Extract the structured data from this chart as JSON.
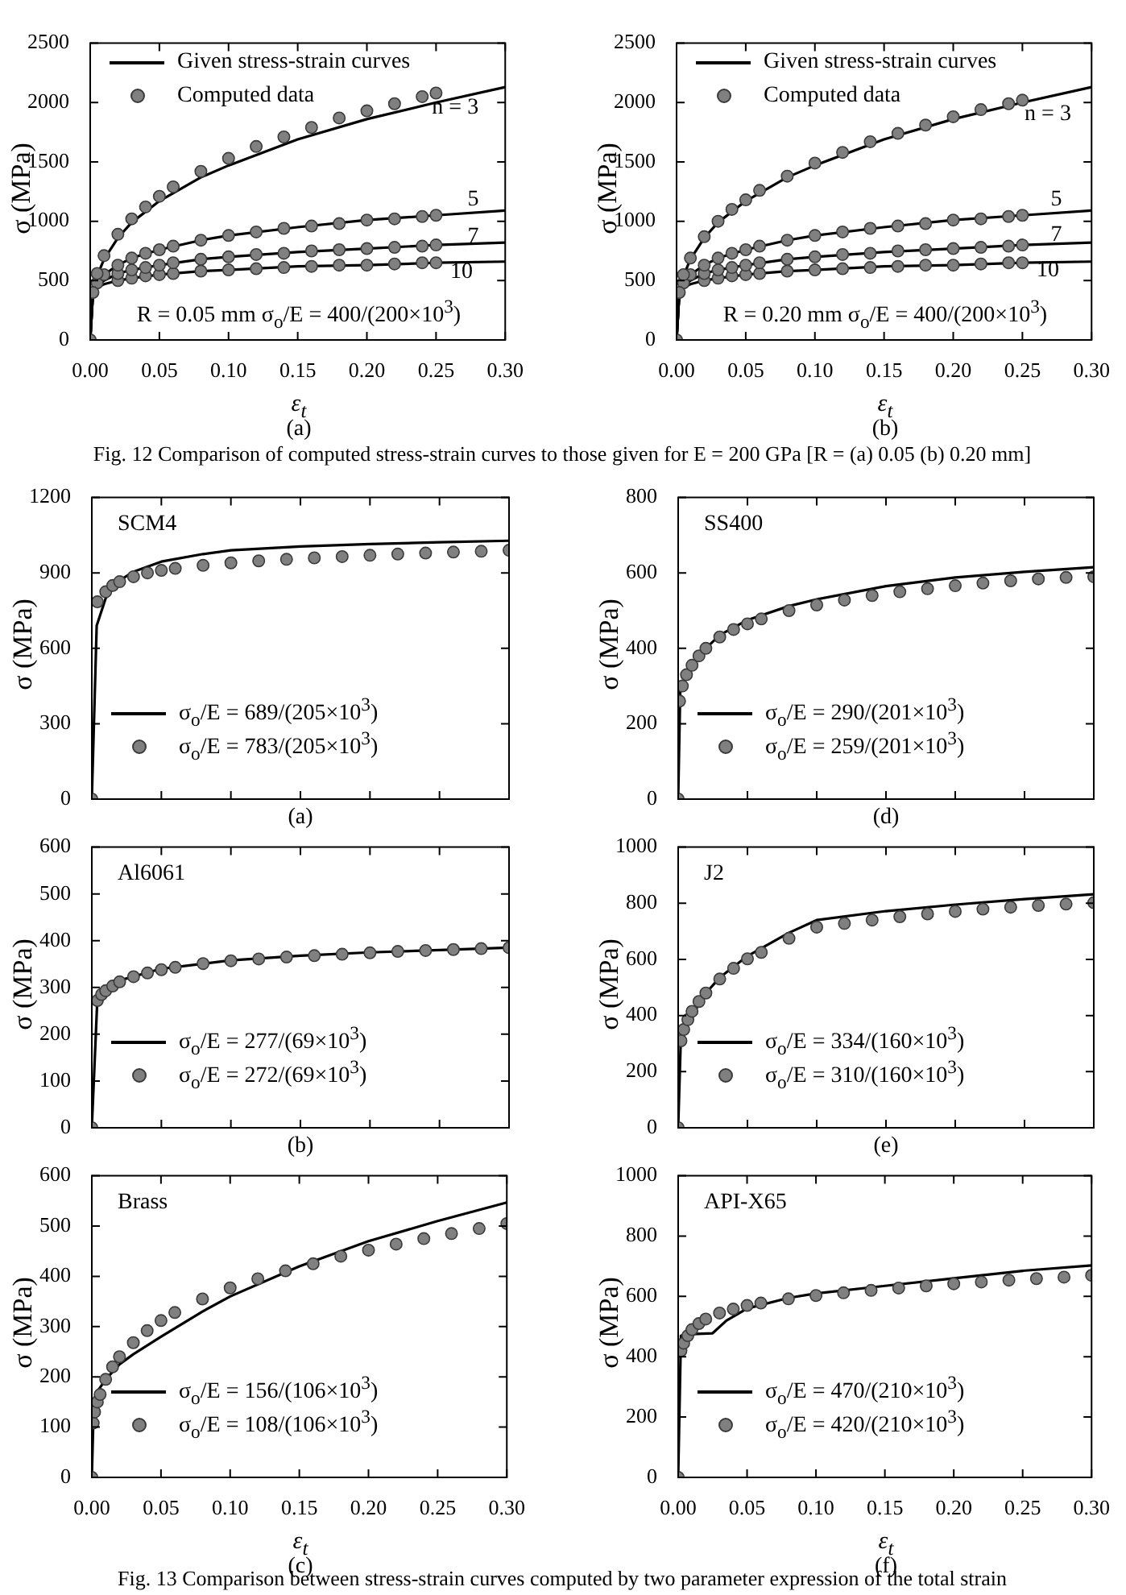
{
  "chart_data": [
    {
      "type": "line",
      "xlabel": "ε$_{t}$",
      "ylabel": "σ (MPa)",
      "xlim": [
        0,
        0.3
      ],
      "ylim": [
        0,
        2500
      ],
      "xticks": [
        {
          "value": 0,
          "label": "0.00"
        },
        {
          "value": 0.05,
          "label": "0.05"
        },
        {
          "value": 0.1,
          "label": "0.10"
        },
        {
          "value": 0.15,
          "label": "0.15"
        },
        {
          "value": 0.2,
          "label": "0.20"
        },
        {
          "value": 0.25,
          "label": "0.25"
        },
        {
          "value": 0.3,
          "label": "0.30"
        }
      ],
      "yticks": [
        0,
        500,
        1000,
        1500,
        2000,
        2500
      ],
      "legend": "top left",
      "annotations": [
        "n = 3",
        "5",
        "7",
        "10",
        "R = 0.05 mm   σ$_{o}$/E = 400/(200×10$^{3}$)",
        "(a)",
        "Fig. 12 Comparison of computed stress-strain curves to those given for E = 200 GPa [R = (a) 0.05 (b) 0.20 mm]"
      ],
      "series": [
        {
          "name": "Given stress-strain curves",
          "type": "line",
          "marker": "none",
          "color": "#000000",
          "x": [
            0,
            0.002,
            0.005,
            0.01,
            0.02,
            0.03,
            0.05,
            0.08,
            0.1,
            0.15,
            0.2,
            0.25,
            0.3
          ],
          "values": [
            0,
            400,
            540,
            680,
            860,
            990,
            1170,
            1370,
            1470,
            1690,
            1860,
            2000,
            2130
          ]
        },
        {
          "type": "line",
          "marker": "none",
          "color": "#000000",
          "x": [
            0,
            0.002,
            0.005,
            0.01,
            0.02,
            0.03,
            0.05,
            0.08,
            0.1,
            0.15,
            0.2,
            0.25,
            0.3
          ],
          "values": [
            0,
            400,
            480,
            550,
            630,
            690,
            760,
            840,
            880,
            950,
            1010,
            1050,
            1090
          ]
        },
        {
          "type": "line",
          "marker": "none",
          "color": "#000000",
          "x": [
            0,
            0.002,
            0.005,
            0.01,
            0.02,
            0.03,
            0.05,
            0.08,
            0.1,
            0.15,
            0.2,
            0.25,
            0.3
          ],
          "values": [
            0,
            400,
            460,
            500,
            560,
            590,
            630,
            680,
            700,
            740,
            770,
            800,
            820
          ]
        },
        {
          "type": "line",
          "marker": "none",
          "color": "#000000",
          "x": [
            0,
            0.002,
            0.005,
            0.01,
            0.02,
            0.03,
            0.05,
            0.08,
            0.1,
            0.15,
            0.2,
            0.25,
            0.3
          ],
          "values": [
            0,
            400,
            440,
            470,
            500,
            520,
            550,
            580,
            590,
            620,
            630,
            650,
            660
          ]
        },
        {
          "name": "Computed data",
          "type": "scatter",
          "marker": "circle",
          "color": "#808080",
          "x": [
            0,
            0.002,
            0.005,
            0.01,
            0.02,
            0.03,
            0.04,
            0.05,
            0.06,
            0.08,
            0.1,
            0.12,
            0.14,
            0.16,
            0.18,
            0.2,
            0.22,
            0.24,
            0.25
          ],
          "values": [
            0,
            400,
            560,
            710,
            890,
            1020,
            1120,
            1210,
            1290,
            1420,
            1530,
            1630,
            1710,
            1790,
            1870,
            1930,
            1990,
            2050,
            2080
          ]
        },
        {
          "type": "scatter",
          "marker": "circle",
          "color": "#808080",
          "x": [
            0.005,
            0.01,
            0.02,
            0.03,
            0.04,
            0.05,
            0.06,
            0.08,
            0.1,
            0.12,
            0.14,
            0.16,
            0.18,
            0.2,
            0.22,
            0.24,
            0.25
          ],
          "values": [
            480,
            550,
            630,
            690,
            730,
            760,
            790,
            840,
            880,
            910,
            940,
            960,
            980,
            1010,
            1020,
            1040,
            1050
          ]
        },
        {
          "type": "scatter",
          "marker": "circle",
          "color": "#808080",
          "x": [
            0.02,
            0.03,
            0.04,
            0.05,
            0.06,
            0.08,
            0.1,
            0.12,
            0.14,
            0.16,
            0.18,
            0.2,
            0.22,
            0.24,
            0.25
          ],
          "values": [
            560,
            590,
            610,
            630,
            650,
            680,
            700,
            720,
            730,
            750,
            760,
            770,
            780,
            790,
            800
          ]
        },
        {
          "type": "scatter",
          "marker": "circle",
          "color": "#808080",
          "x": [
            0.02,
            0.03,
            0.04,
            0.05,
            0.06,
            0.08,
            0.1,
            0.12,
            0.14,
            0.16,
            0.18,
            0.2,
            0.22,
            0.24,
            0.25
          ],
          "values": [
            500,
            520,
            540,
            550,
            560,
            580,
            590,
            600,
            610,
            620,
            630,
            630,
            640,
            650,
            650
          ]
        }
      ]
    },
    {
      "type": "line",
      "xlabel": "ε$_{t}$",
      "ylabel": "σ (MPa)",
      "xlim": [
        0,
        0.3
      ],
      "ylim": [
        0,
        2500
      ],
      "xticks": [
        {
          "value": 0,
          "label": "0.00"
        },
        {
          "value": 0.05,
          "label": "0.05"
        },
        {
          "value": 0.1,
          "label": "0.10"
        },
        {
          "value": 0.15,
          "label": "0.15"
        },
        {
          "value": 0.2,
          "label": "0.20"
        },
        {
          "value": 0.25,
          "label": "0.25"
        },
        {
          "value": 0.3,
          "label": "0.30"
        }
      ],
      "yticks": [
        0,
        500,
        1000,
        1500,
        2000,
        2500
      ],
      "legend": "top left",
      "annotations": [
        "n = 3",
        "5",
        "7",
        "10",
        "R = 0.20 mm   σ$_{o}$/E = 400/(200×10$^{3}$)",
        "(b)"
      ],
      "series": [
        {
          "name": "Given stress-strain curves",
          "type": "line",
          "marker": "none",
          "color": "#000000",
          "x": [
            0,
            0.002,
            0.005,
            0.01,
            0.02,
            0.03,
            0.05,
            0.08,
            0.1,
            0.15,
            0.2,
            0.25,
            0.3
          ],
          "values": [
            0,
            400,
            540,
            680,
            860,
            990,
            1170,
            1370,
            1470,
            1690,
            1860,
            2000,
            2130
          ]
        },
        {
          "type": "line",
          "marker": "none",
          "color": "#000000",
          "x": [
            0,
            0.002,
            0.005,
            0.01,
            0.02,
            0.03,
            0.05,
            0.08,
            0.1,
            0.15,
            0.2,
            0.25,
            0.3
          ],
          "values": [
            0,
            400,
            480,
            550,
            630,
            690,
            760,
            840,
            880,
            950,
            1010,
            1050,
            1090
          ]
        },
        {
          "type": "line",
          "marker": "none",
          "color": "#000000",
          "x": [
            0,
            0.002,
            0.005,
            0.01,
            0.02,
            0.03,
            0.05,
            0.08,
            0.1,
            0.15,
            0.2,
            0.25,
            0.3
          ],
          "values": [
            0,
            400,
            460,
            500,
            560,
            590,
            630,
            680,
            700,
            740,
            770,
            800,
            820
          ]
        },
        {
          "type": "line",
          "marker": "none",
          "color": "#000000",
          "x": [
            0,
            0.002,
            0.005,
            0.01,
            0.02,
            0.03,
            0.05,
            0.08,
            0.1,
            0.15,
            0.2,
            0.25,
            0.3
          ],
          "values": [
            0,
            400,
            440,
            470,
            500,
            520,
            550,
            580,
            590,
            620,
            630,
            650,
            660
          ]
        },
        {
          "name": "Computed data",
          "type": "scatter",
          "marker": "circle",
          "color": "#808080",
          "x": [
            0,
            0.002,
            0.005,
            0.01,
            0.02,
            0.03,
            0.04,
            0.05,
            0.06,
            0.08,
            0.1,
            0.12,
            0.14,
            0.16,
            0.18,
            0.2,
            0.22,
            0.24,
            0.25
          ],
          "values": [
            0,
            400,
            550,
            690,
            870,
            1000,
            1100,
            1180,
            1260,
            1380,
            1490,
            1580,
            1670,
            1740,
            1810,
            1880,
            1940,
            1990,
            2020
          ]
        },
        {
          "type": "scatter",
          "marker": "circle",
          "color": "#808080",
          "x": [
            0.005,
            0.01,
            0.02,
            0.03,
            0.04,
            0.05,
            0.06,
            0.08,
            0.1,
            0.12,
            0.14,
            0.16,
            0.18,
            0.2,
            0.22,
            0.24,
            0.25
          ],
          "values": [
            480,
            550,
            630,
            690,
            730,
            760,
            790,
            840,
            880,
            910,
            940,
            960,
            980,
            1010,
            1020,
            1040,
            1050
          ]
        },
        {
          "type": "scatter",
          "marker": "circle",
          "color": "#808080",
          "x": [
            0.02,
            0.03,
            0.04,
            0.05,
            0.06,
            0.08,
            0.1,
            0.12,
            0.14,
            0.16,
            0.18,
            0.2,
            0.22,
            0.24,
            0.25
          ],
          "values": [
            560,
            590,
            610,
            630,
            650,
            680,
            700,
            720,
            730,
            750,
            760,
            770,
            780,
            790,
            800
          ]
        },
        {
          "type": "scatter",
          "marker": "circle",
          "color": "#808080",
          "x": [
            0.02,
            0.03,
            0.04,
            0.05,
            0.06,
            0.08,
            0.1,
            0.12,
            0.14,
            0.16,
            0.18,
            0.2,
            0.22,
            0.24,
            0.25
          ],
          "values": [
            500,
            520,
            540,
            550,
            560,
            580,
            590,
            600,
            610,
            620,
            630,
            630,
            640,
            650,
            650
          ]
        }
      ]
    },
    {
      "type": "line",
      "ylabel": "σ (MPa)",
      "xlim": [
        0,
        0.3
      ],
      "ylim": [
        0,
        1200
      ],
      "tick_labels": "y",
      "xticks": [
        0,
        0.05,
        0.1,
        0.15,
        0.2,
        0.25,
        0.3
      ],
      "yticks": [
        0,
        300,
        600,
        900,
        1200
      ],
      "legend": "bottom left",
      "annotations": [
        "SCM4",
        "(a)"
      ],
      "series": [
        {
          "name": "σ$_{o}$/E = 689/(205×10$^{3}$)",
          "type": "line",
          "marker": "none",
          "color": "#000000",
          "x": [
            0,
            0.0035,
            0.01,
            0.02,
            0.03,
            0.05,
            0.08,
            0.1,
            0.15,
            0.2,
            0.25,
            0.3
          ],
          "values": [
            0,
            690,
            800,
            870,
            905,
            945,
            975,
            990,
            1005,
            1015,
            1022,
            1028
          ]
        },
        {
          "name": "σ$_{o}$/E = 783/(205×10$^{3}$)",
          "type": "scatter",
          "marker": "circle",
          "color": "#808080",
          "x": [
            0,
            0.004,
            0.01,
            0.015,
            0.02,
            0.03,
            0.04,
            0.05,
            0.06,
            0.08,
            0.1,
            0.12,
            0.14,
            0.16,
            0.18,
            0.2,
            0.22,
            0.24,
            0.26,
            0.28,
            0.3
          ],
          "values": [
            0,
            785,
            825,
            850,
            865,
            885,
            900,
            910,
            918,
            930,
            940,
            948,
            954,
            960,
            965,
            970,
            975,
            979,
            983,
            986,
            990
          ]
        }
      ]
    },
    {
      "type": "line",
      "ylabel": "σ (MPa)",
      "xlim": [
        0,
        0.3
      ],
      "ylim": [
        0,
        800
      ],
      "tick_labels": "y",
      "xticks": [
        0,
        0.05,
        0.1,
        0.15,
        0.2,
        0.25,
        0.3
      ],
      "yticks": [
        0,
        200,
        400,
        600,
        800
      ],
      "legend": "bottom left",
      "annotations": [
        "SS400",
        "(d)"
      ],
      "series": [
        {
          "name": "σ$_{o}$/E = 290/(201×10$^{3}$)",
          "type": "line",
          "marker": "none",
          "color": "#000000",
          "x": [
            0,
            0.0015,
            0.005,
            0.01,
            0.02,
            0.03,
            0.05,
            0.08,
            0.1,
            0.15,
            0.2,
            0.25,
            0.3
          ],
          "values": [
            0,
            290,
            320,
            350,
            400,
            435,
            475,
            512,
            530,
            565,
            588,
            603,
            615
          ]
        },
        {
          "name": "σ$_{o}$/E = 259/(201×10$^{3}$)",
          "type": "scatter",
          "marker": "circle",
          "color": "#808080",
          "x": [
            0,
            0.001,
            0.003,
            0.006,
            0.01,
            0.015,
            0.02,
            0.03,
            0.04,
            0.05,
            0.06,
            0.08,
            0.1,
            0.12,
            0.14,
            0.16,
            0.18,
            0.2,
            0.22,
            0.24,
            0.26,
            0.28,
            0.3
          ],
          "values": [
            0,
            260,
            300,
            330,
            355,
            380,
            400,
            430,
            450,
            465,
            478,
            500,
            515,
            528,
            540,
            550,
            558,
            566,
            573,
            579,
            584,
            588,
            590
          ]
        }
      ]
    },
    {
      "type": "line",
      "ylabel": "σ (MPa)",
      "xlim": [
        0,
        0.3
      ],
      "ylim": [
        0,
        600
      ],
      "tick_labels": "y",
      "xticks": [
        0,
        0.05,
        0.1,
        0.15,
        0.2,
        0.25,
        0.3
      ],
      "yticks": [
        0,
        100,
        200,
        300,
        400,
        500,
        600
      ],
      "legend": "bottom left",
      "annotations": [
        "Al6061",
        "(b)"
      ],
      "series": [
        {
          "name": "σ$_{o}$/E = 277/(69×10$^{3}$)",
          "type": "line",
          "marker": "none",
          "color": "#000000",
          "x": [
            0,
            0.004,
            0.01,
            0.02,
            0.05,
            0.1,
            0.15,
            0.2,
            0.25,
            0.3
          ],
          "values": [
            0,
            277,
            295,
            315,
            340,
            358,
            368,
            375,
            380,
            385
          ]
        },
        {
          "name": "σ$_{o}$/E = 272/(69×10$^{3}$)",
          "type": "scatter",
          "marker": "circle",
          "color": "#808080",
          "x": [
            0,
            0.004,
            0.007,
            0.01,
            0.015,
            0.02,
            0.03,
            0.04,
            0.05,
            0.06,
            0.08,
            0.1,
            0.12,
            0.14,
            0.16,
            0.18,
            0.2,
            0.22,
            0.24,
            0.26,
            0.28,
            0.3
          ],
          "values": [
            0,
            272,
            285,
            293,
            303,
            312,
            323,
            331,
            338,
            343,
            351,
            357,
            361,
            365,
            368,
            371,
            374,
            377,
            379,
            381,
            383,
            385
          ]
        }
      ]
    },
    {
      "type": "line",
      "ylabel": "σ (MPa)",
      "xlim": [
        0,
        0.3
      ],
      "ylim": [
        0,
        1000
      ],
      "tick_labels": "y",
      "xticks": [
        0,
        0.05,
        0.1,
        0.15,
        0.2,
        0.25,
        0.3
      ],
      "yticks": [
        0,
        200,
        400,
        600,
        800,
        1000
      ],
      "legend": "bottom left",
      "annotations": [
        "J2",
        "(e)"
      ],
      "series": [
        {
          "name": "σ$_{o}$/E = 334/(160×10$^{3}$)",
          "type": "line",
          "marker": "none",
          "color": "#000000",
          "x": [
            0,
            0.002,
            0.005,
            0.01,
            0.02,
            0.03,
            0.05,
            0.08,
            0.1,
            0.15,
            0.2,
            0.25,
            0.3
          ],
          "values": [
            0,
            334,
            350,
            400,
            480,
            535,
            612,
            695,
            740,
            772,
            795,
            815,
            832
          ]
        },
        {
          "name": "σ$_{o}$/E = 310/(160×10$^{3}$)",
          "type": "scatter",
          "marker": "circle",
          "color": "#808080",
          "x": [
            0,
            0.002,
            0.004,
            0.007,
            0.01,
            0.015,
            0.02,
            0.03,
            0.04,
            0.05,
            0.06,
            0.08,
            0.1,
            0.12,
            0.14,
            0.16,
            0.18,
            0.2,
            0.22,
            0.24,
            0.26,
            0.28,
            0.3
          ],
          "values": [
            0,
            310,
            350,
            385,
            415,
            450,
            480,
            530,
            568,
            602,
            625,
            675,
            715,
            728,
            740,
            752,
            762,
            771,
            779,
            786,
            792,
            797,
            802
          ]
        }
      ]
    },
    {
      "type": "line",
      "xlabel": "ε$_{t}$",
      "ylabel": "σ (MPa)",
      "xlim": [
        0,
        0.3
      ],
      "ylim": [
        0,
        600
      ],
      "xticks": [
        {
          "value": 0,
          "label": "0.00"
        },
        {
          "value": 0.05,
          "label": "0.05"
        },
        {
          "value": 0.1,
          "label": "0.10"
        },
        {
          "value": 0.15,
          "label": "0.15"
        },
        {
          "value": 0.2,
          "label": "0.20"
        },
        {
          "value": 0.25,
          "label": "0.25"
        },
        {
          "value": 0.3,
          "label": "0.30"
        }
      ],
      "yticks": [
        0,
        100,
        200,
        300,
        400,
        500,
        600
      ],
      "legend": "bottom left",
      "annotations": [
        "Brass",
        "(c)",
        "Fig. 13 Comparison between stress-strain curves computed by two parameter expression of the total strain"
      ],
      "series": [
        {
          "name": "σ$_{o}$/E = 156/(106×10$^{3}$)",
          "type": "line",
          "marker": "none",
          "color": "#000000",
          "x": [
            0,
            0.0015,
            0.005,
            0.01,
            0.02,
            0.03,
            0.05,
            0.08,
            0.1,
            0.15,
            0.2,
            0.25,
            0.3
          ],
          "values": [
            0,
            156,
            175,
            195,
            225,
            245,
            280,
            330,
            360,
            420,
            470,
            510,
            547
          ]
        },
        {
          "name": "σ$_{o}$/E = 108/(106×10$^{3}$)",
          "type": "scatter",
          "marker": "circle",
          "color": "#808080",
          "x": [
            0,
            0.001,
            0.002,
            0.004,
            0.006,
            0.01,
            0.015,
            0.02,
            0.03,
            0.04,
            0.05,
            0.06,
            0.08,
            0.1,
            0.12,
            0.14,
            0.16,
            0.18,
            0.2,
            0.22,
            0.24,
            0.26,
            0.28,
            0.3
          ],
          "values": [
            0,
            108,
            130,
            150,
            165,
            195,
            220,
            240,
            268,
            292,
            312,
            328,
            355,
            377,
            395,
            411,
            425,
            440,
            452,
            464,
            475,
            485,
            495,
            505
          ]
        }
      ]
    },
    {
      "type": "line",
      "xlabel": "ε$_{t}$",
      "ylabel": "σ (MPa)",
      "xlim": [
        0,
        0.3
      ],
      "ylim": [
        0,
        1000
      ],
      "xticks": [
        {
          "value": 0,
          "label": "0.00"
        },
        {
          "value": 0.05,
          "label": "0.05"
        },
        {
          "value": 0.1,
          "label": "0.10"
        },
        {
          "value": 0.15,
          "label": "0.15"
        },
        {
          "value": 0.2,
          "label": "0.20"
        },
        {
          "value": 0.25,
          "label": "0.25"
        },
        {
          "value": 0.3,
          "label": "0.30"
        }
      ],
      "yticks": [
        0,
        200,
        400,
        600,
        800,
        1000
      ],
      "legend": "bottom left",
      "annotations": [
        "API-X65",
        "(f)"
      ],
      "series": [
        {
          "name": "σ$_{o}$/E = 470/(210×10$^{3}$)",
          "type": "line",
          "marker": "none",
          "color": "#000000",
          "x": [
            0,
            0.002,
            0.01,
            0.025,
            0.035,
            0.05,
            0.08,
            0.1,
            0.15,
            0.2,
            0.25,
            0.3
          ],
          "values": [
            0,
            470,
            475,
            478,
            520,
            560,
            595,
            610,
            635,
            660,
            685,
            703
          ]
        },
        {
          "name": "σ$_{o}$/E = 420/(210×10$^{3}$)",
          "type": "scatter",
          "marker": "circle",
          "color": "#808080",
          "x": [
            0,
            0.002,
            0.004,
            0.007,
            0.01,
            0.015,
            0.02,
            0.03,
            0.04,
            0.05,
            0.06,
            0.08,
            0.1,
            0.12,
            0.14,
            0.16,
            0.18,
            0.2,
            0.22,
            0.24,
            0.26,
            0.28,
            0.3
          ],
          "values": [
            0,
            420,
            445,
            470,
            490,
            510,
            525,
            545,
            558,
            570,
            578,
            592,
            603,
            612,
            620,
            628,
            635,
            642,
            648,
            654,
            659,
            664,
            670
          ]
        }
      ]
    }
  ]
}
